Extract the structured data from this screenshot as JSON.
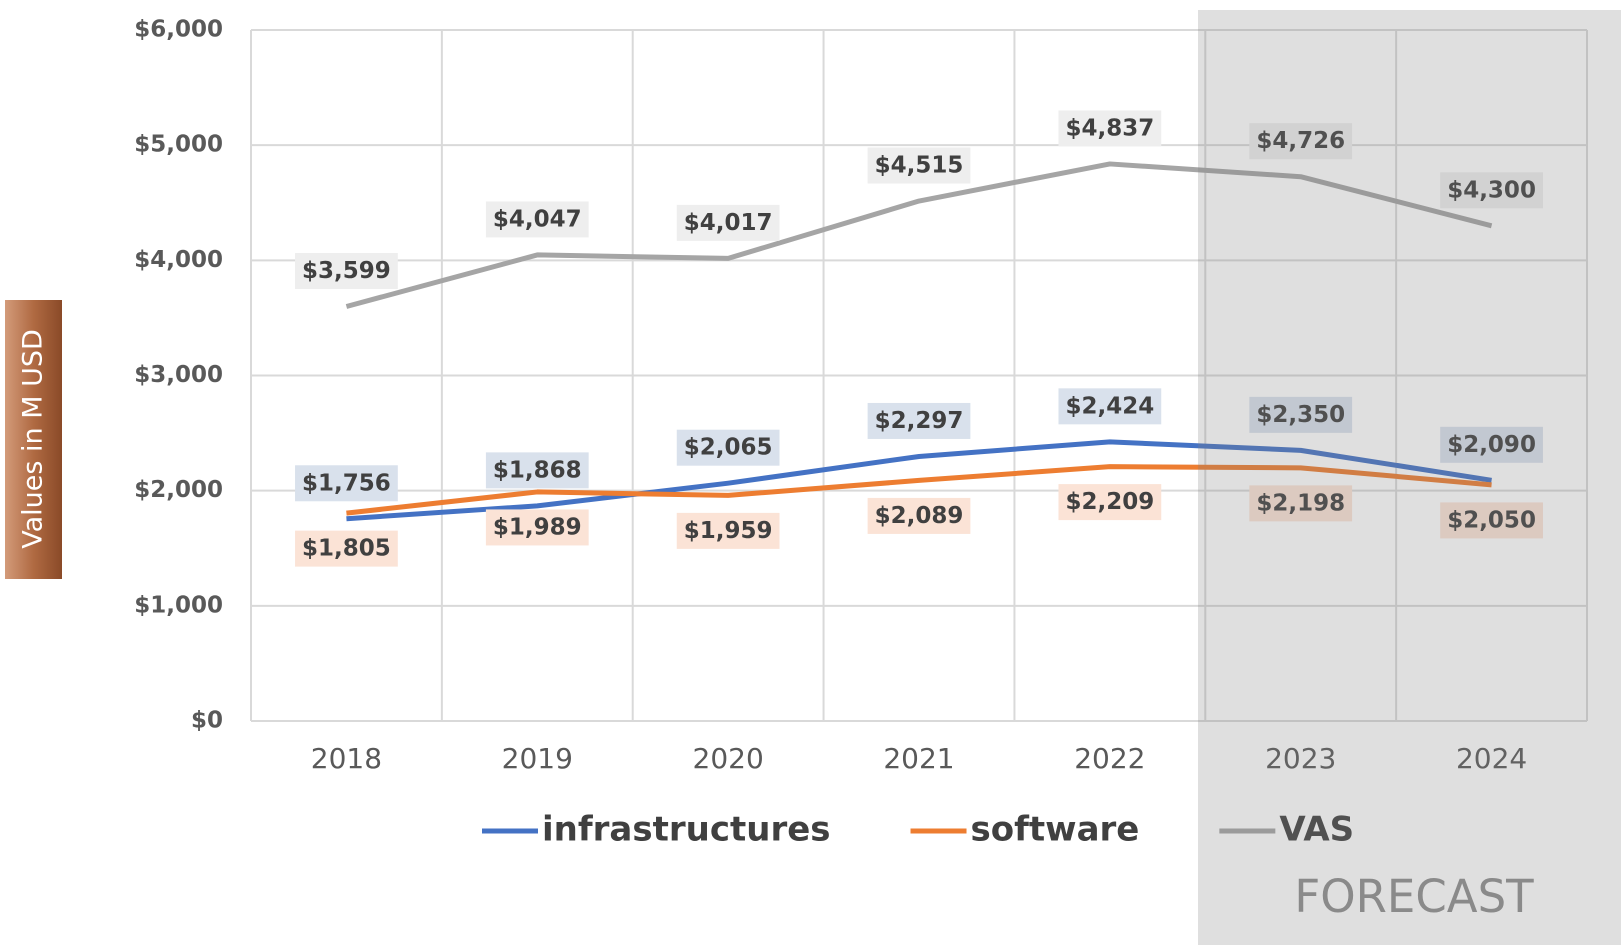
{
  "chart_data": {
    "type": "line",
    "y_label": "Values in M USD",
    "annotation": "FORECAST",
    "categories": [
      "2018",
      "2019",
      "2020",
      "2021",
      "2022",
      "2023",
      "2024"
    ],
    "series": [
      {
        "name": "infrastructures",
        "color": "#4472c4",
        "values": [
          1756,
          1868,
          2065,
          2297,
          2424,
          2350,
          2090
        ],
        "value_labels": [
          "$1,756",
          "$1,868",
          "$2,065",
          "$2,297",
          "$2,424",
          "$2,350",
          "$2,090"
        ]
      },
      {
        "name": "software",
        "color": "#ed7d31",
        "values": [
          1805,
          1989,
          1959,
          2089,
          2209,
          2198,
          2050
        ],
        "value_labels": [
          "$1,805",
          "$1,989",
          "$1,959",
          "$2,089",
          "$2,209",
          "$2,198",
          "$2,050"
        ]
      },
      {
        "name": "VAS",
        "color": "#a5a5a5",
        "values": [
          3599,
          4047,
          4017,
          4515,
          4837,
          4726,
          4300
        ],
        "value_labels": [
          "$3,599",
          "$4,047",
          "$4,017",
          "$4,515",
          "$4,837",
          "$4,726",
          "$4,300"
        ]
      }
    ],
    "ylim": [
      0,
      6000
    ],
    "yticks": [
      {
        "value": 0,
        "label": "$0"
      },
      {
        "value": 1000,
        "label": "$1,000"
      },
      {
        "value": 2000,
        "label": "$2,000"
      },
      {
        "value": 3000,
        "label": "$3,000"
      },
      {
        "value": 4000,
        "label": "$4,000"
      },
      {
        "value": 5000,
        "label": "$5,000"
      },
      {
        "value": 6000,
        "label": "$6,000"
      }
    ],
    "grid": true,
    "legend": "bottom"
  }
}
